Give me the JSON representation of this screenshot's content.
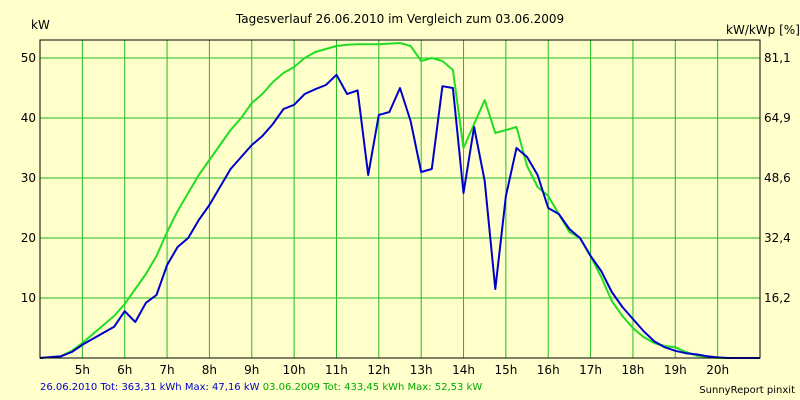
{
  "chart_data": {
    "type": "line",
    "title": "Tagesverlauf 26.06.2010 im Vergleich zum 03.06.2009",
    "ylabel_left": "kW",
    "ylabel_right": "kW/kWp [%]",
    "xlim": [
      4.0,
      21.0
    ],
    "ylim": [
      0,
      53
    ],
    "grid": true,
    "x_ticks": [
      5,
      6,
      7,
      8,
      9,
      10,
      11,
      12,
      13,
      14,
      15,
      16,
      17,
      18,
      19,
      20
    ],
    "x_tick_labels": [
      "5h",
      "6h",
      "7h",
      "8h",
      "9h",
      "10h",
      "11h",
      "12h",
      "13h",
      "14h",
      "15h",
      "16h",
      "17h",
      "18h",
      "19h",
      "20h"
    ],
    "y_left_ticks": [
      10,
      20,
      30,
      40,
      50
    ],
    "y_left_tick_labels": [
      "10",
      "20",
      "30",
      "40",
      "50"
    ],
    "y_right_ticks": [
      10,
      20,
      30,
      40,
      50
    ],
    "y_right_tick_labels": [
      "16,2",
      "32,4",
      "48,6",
      "64,9",
      "81,1"
    ],
    "colors": {
      "background": "#ffffcc",
      "grid": "#22bb22",
      "axis": "#000000"
    },
    "series": [
      {
        "name": "26.06.2010",
        "color": "#0000cc",
        "x": [
          4.0,
          4.5,
          4.75,
          5.0,
          5.25,
          5.5,
          5.75,
          6.0,
          6.25,
          6.5,
          6.75,
          7.0,
          7.25,
          7.5,
          7.75,
          8.0,
          8.25,
          8.5,
          8.75,
          9.0,
          9.25,
          9.5,
          9.75,
          10.0,
          10.25,
          10.5,
          10.75,
          11.0,
          11.25,
          11.5,
          11.75,
          12.0,
          12.25,
          12.5,
          12.75,
          13.0,
          13.25,
          13.5,
          13.75,
          14.0,
          14.25,
          14.5,
          14.75,
          15.0,
          15.25,
          15.5,
          15.75,
          16.0,
          16.25,
          16.5,
          16.75,
          17.0,
          17.25,
          17.5,
          17.75,
          18.0,
          18.25,
          18.5,
          18.75,
          19.0,
          19.25,
          19.5,
          19.75,
          20.0,
          20.25,
          20.5,
          20.75,
          21.0
        ],
        "y": [
          0.0,
          0.3,
          1.0,
          2.2,
          3.2,
          4.2,
          5.2,
          7.8,
          6.0,
          9.2,
          10.5,
          15.5,
          18.5,
          20.0,
          23.0,
          25.5,
          28.5,
          31.5,
          33.5,
          35.5,
          37.0,
          39.0,
          41.5,
          42.2,
          44.0,
          44.8,
          45.5,
          47.2,
          44.0,
          44.6,
          30.5,
          40.5,
          41.0,
          45.0,
          39.5,
          31.0,
          31.5,
          45.3,
          45.0,
          27.5,
          38.5,
          29.5,
          11.5,
          27.0,
          35.0,
          33.5,
          30.5,
          25.0,
          24.0,
          21.5,
          20.0,
          17.0,
          14.5,
          11.0,
          8.5,
          6.5,
          4.5,
          2.8,
          1.8,
          1.2,
          0.8,
          0.6,
          0.3,
          0.1,
          0.0,
          0.0,
          0.0,
          0.0
        ]
      },
      {
        "name": "03.06.2009",
        "color": "#22dd22",
        "x": [
          4.0,
          4.5,
          4.75,
          5.0,
          5.25,
          5.5,
          5.75,
          6.0,
          6.25,
          6.5,
          6.75,
          7.0,
          7.25,
          7.5,
          7.75,
          8.0,
          8.25,
          8.5,
          8.75,
          9.0,
          9.25,
          9.5,
          9.75,
          10.0,
          10.25,
          10.5,
          10.75,
          11.0,
          11.25,
          11.5,
          11.75,
          12.0,
          12.25,
          12.5,
          12.75,
          13.0,
          13.25,
          13.5,
          13.75,
          14.0,
          14.25,
          14.5,
          14.75,
          15.0,
          15.25,
          15.5,
          15.75,
          16.0,
          16.25,
          16.5,
          16.75,
          17.0,
          17.25,
          17.5,
          17.75,
          18.0,
          18.25,
          18.5,
          18.75,
          19.0,
          19.25,
          19.5,
          19.75,
          20.0,
          20.25,
          20.5,
          20.75,
          21.0
        ],
        "y": [
          0.0,
          0.3,
          1.2,
          2.5,
          4.0,
          5.5,
          7.0,
          9.0,
          11.5,
          14.0,
          17.0,
          21.0,
          24.5,
          27.5,
          30.5,
          33.0,
          35.5,
          38.0,
          40.0,
          42.5,
          44.0,
          46.0,
          47.5,
          48.5,
          50.0,
          51.0,
          51.5,
          52.0,
          52.2,
          52.3,
          52.3,
          52.3,
          52.4,
          52.5,
          52.0,
          49.5,
          50.0,
          49.5,
          48.0,
          35.0,
          39.0,
          43.0,
          37.5,
          38.0,
          38.5,
          32.0,
          28.5,
          27.0,
          24.0,
          21.0,
          20.0,
          17.0,
          13.5,
          9.5,
          7.0,
          5.0,
          3.5,
          2.5,
          2.0,
          1.8,
          1.0,
          0.4,
          0.2,
          0.0,
          0.0,
          0.0,
          0.0,
          0.0
        ]
      }
    ]
  },
  "footer": {
    "series1_label": "26.06.2010",
    "series1_stats": "Tot: 363,31 kWh Max: 47,16 kW",
    "series2_label": "03.06.2009",
    "series2_stats": "Tot: 433,45 kWh Max: 52,53 kW",
    "credit": "SunnyReport pinxit"
  }
}
